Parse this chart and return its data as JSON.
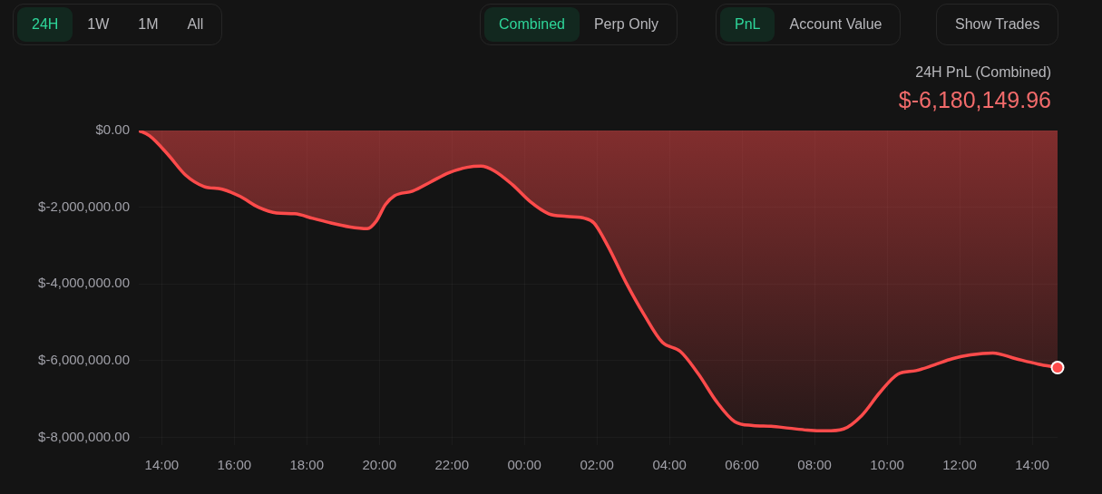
{
  "chart_data": {
    "type": "area",
    "subtitle": "24H PnL (Combined)",
    "annotations": [
      "24H",
      "1W",
      "1M",
      "All",
      "Combined",
      "Perp Only",
      "PnL",
      "Account Value",
      "Show Trades",
      "$-6,180,149.96"
    ],
    "x": [
      "--01-01T13:22",
      "--01-01T13:40",
      "--01-01T14:10",
      "--01-01T14:40",
      "--01-01T15:10",
      "--01-01T15:40",
      "--01-01T16:10",
      "--01-01T16:40",
      "--01-01T17:10",
      "--01-01T17:40",
      "--01-01T18:10",
      "--01-01T18:40",
      "--01-01T19:10",
      "--01-01T19:40",
      "--01-01T19:55",
      "--01-01T20:10",
      "--01-01T20:25",
      "--01-01T20:55",
      "--01-01T21:25",
      "--01-01T21:55",
      "--01-01T22:25",
      "--01-01T22:48",
      "--01-01T23:10",
      "--01-01T23:40",
      "--01-02T00:10",
      "--01-02T00:40",
      "--01-02T01:10",
      "--01-02T01:40",
      "--01-02T01:55",
      "--01-02T02:18",
      "--01-02T02:48",
      "--01-02T03:18",
      "--01-02T03:48",
      "--01-02T04:18",
      "--01-02T04:48",
      "--01-02T05:18",
      "--01-02T05:48",
      "--01-02T06:18",
      "--01-02T06:48",
      "--01-02T07:18",
      "--01-02T07:48",
      "--01-02T08:18",
      "--01-02T08:48",
      "--01-02T09:18",
      "--01-02T09:48",
      "--01-02T10:18",
      "--01-02T10:48",
      "--01-02T11:18",
      "--01-02T11:48",
      "--01-02T12:18",
      "--01-02T12:55",
      "--01-02T13:33",
      "--01-02T14:10",
      "--01-02T14:42"
    ],
    "series": [
      {
        "color": "#ff4b4b",
        "values": [
          0,
          -140000,
          -620000,
          -1170000,
          -1460000,
          -1530000,
          -1720000,
          -2000000,
          -2150000,
          -2170000,
          -2290000,
          -2410000,
          -2510000,
          -2560000,
          -2360000,
          -1930000,
          -1700000,
          -1580000,
          -1340000,
          -1100000,
          -960000,
          -930000,
          -1050000,
          -1410000,
          -1860000,
          -2170000,
          -2240000,
          -2290000,
          -2410000,
          -3010000,
          -3960000,
          -4800000,
          -5520000,
          -5760000,
          -6350000,
          -7070000,
          -7590000,
          -7690000,
          -7710000,
          -7760000,
          -7810000,
          -7830000,
          -7780000,
          -7430000,
          -6830000,
          -6350000,
          -6260000,
          -6110000,
          -5950000,
          -5850000,
          -5800000,
          -5950000,
          -6090000,
          -6180000
        ]
      }
    ],
    "xlim": [
      "--01-01T13:22",
      "--01-02T14:42"
    ],
    "ylim": [
      -8200000,
      0
    ],
    "xticks": [
      {
        "value": "--01-01T14:00",
        "label": "14:00"
      },
      {
        "value": "--01-01T16:00",
        "label": "16:00"
      },
      {
        "value": "--01-01T18:00",
        "label": "18:00"
      },
      {
        "value": "--01-01T20:00",
        "label": "20:00"
      },
      {
        "value": "--01-01T22:00",
        "label": "22:00"
      },
      {
        "value": "--01-02T00:00",
        "label": "00:00"
      },
      {
        "value": "--01-02T02:00",
        "label": "02:00"
      },
      {
        "value": "--01-02T04:00",
        "label": "04:00"
      },
      {
        "value": "--01-02T06:00",
        "label": "06:00"
      },
      {
        "value": "--01-02T08:00",
        "label": "08:00"
      },
      {
        "value": "--01-02T10:00",
        "label": "10:00"
      },
      {
        "value": "--01-02T12:00",
        "label": "12:00"
      },
      {
        "value": "--01-02T14:00",
        "label": "14:00"
      }
    ],
    "yticks": [
      {
        "value": 0,
        "label": "$0.00"
      },
      {
        "value": -2000000,
        "label": "$-2,000,000.00"
      },
      {
        "value": -4000000,
        "label": "$-4,000,000.00"
      },
      {
        "value": -6000000,
        "label": "$-6,000,000.00"
      },
      {
        "value": -8000000,
        "label": "$-8,000,000.00"
      }
    ],
    "grid": true,
    "legend": false
  }
}
